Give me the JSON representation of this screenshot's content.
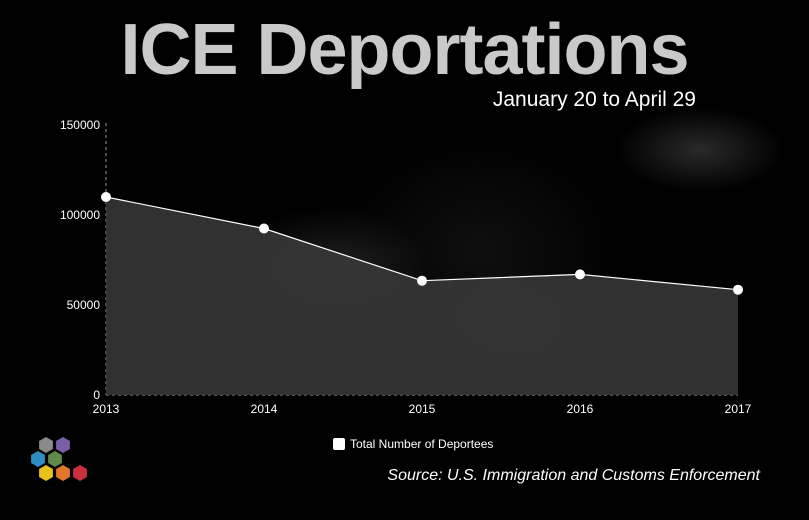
{
  "header": {
    "title": "ICE Deportations",
    "subtitle": "January 20 to April 29"
  },
  "legend": {
    "label": "Total Number of Deportees",
    "swatch_color": "#ffffff"
  },
  "source": "Source: U.S. Immigration and Customs Enforcement",
  "colors": {
    "area_fill": "#3a3a3a",
    "line": "#ffffff",
    "point": "#ffffff"
  },
  "chart_data": {
    "type": "area",
    "x": [
      "2013",
      "2014",
      "2015",
      "2016",
      "2017"
    ],
    "series": [
      {
        "name": "Total Number of Deportees",
        "values": [
          110000,
          92500,
          63500,
          67000,
          58500
        ]
      }
    ],
    "yticks": [
      "0",
      "50000",
      "100000",
      "150000"
    ],
    "ylim": [
      0,
      150000
    ],
    "legend": "bottom"
  }
}
